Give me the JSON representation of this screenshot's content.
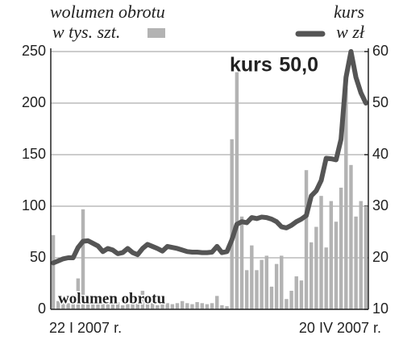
{
  "chart_data": {
    "type": "bar",
    "categories": [
      "22 I 2007 r.",
      null,
      null,
      null,
      null,
      null,
      null,
      null,
      null,
      null,
      null,
      null,
      null,
      null,
      null,
      null,
      null,
      null,
      null,
      null,
      null,
      null,
      null,
      null,
      null,
      null,
      null,
      null,
      null,
      null,
      null,
      null,
      null,
      null,
      null,
      null,
      null,
      null,
      null,
      null,
      null,
      null,
      null,
      null,
      null,
      null,
      null,
      null,
      null,
      null,
      null,
      null,
      null,
      null,
      null,
      null,
      null,
      null,
      null,
      null,
      null,
      null,
      null,
      "20 IV 2007 r."
    ],
    "series": [
      {
        "name": "wolumen obrotu",
        "unit": "w tys. szt.",
        "type": "bar",
        "color": "#b3b3b3",
        "values": [
          72,
          8,
          7,
          6,
          5,
          30,
          97,
          8,
          6,
          5,
          8,
          6,
          5,
          7,
          4,
          5,
          5,
          10,
          18,
          8,
          6,
          4,
          7,
          6,
          5,
          6,
          8,
          6,
          5,
          7,
          6,
          5,
          6,
          13,
          4,
          3,
          165,
          230,
          90,
          38,
          62,
          38,
          48,
          52,
          22,
          44,
          52,
          10,
          18,
          32,
          28,
          135,
          65,
          80,
          110,
          60,
          105,
          85,
          118,
          215,
          140,
          90,
          105,
          100
        ]
      },
      {
        "name": "kurs",
        "unit": "w zł",
        "type": "line",
        "axis": "y2",
        "color": "#555555",
        "values": [
          19,
          19.4,
          19.8,
          20,
          20,
          22,
          23.2,
          23.3,
          22.8,
          22.3,
          21.2,
          21.8,
          21.5,
          20.8,
          21,
          21.8,
          21,
          20.6,
          21.8,
          22.6,
          22.2,
          21.8,
          21.3,
          22.2,
          22,
          21.8,
          21.5,
          21.2,
          21.1,
          21.1,
          21,
          21,
          21.1,
          22.2,
          21,
          21.2,
          23.5,
          26.5,
          27,
          26.8,
          27.8,
          27.6,
          27.9,
          27.8,
          27.5,
          27,
          26,
          25.8,
          26.3,
          27,
          27.5,
          28.2,
          32,
          33,
          35,
          39.3,
          39.2,
          39,
          43,
          55,
          60,
          55,
          52,
          50
        ],
        "value_labels": [
          null,
          null,
          null,
          null,
          null,
          null,
          null,
          null,
          null,
          null,
          null,
          null,
          null,
          null,
          null,
          null,
          null,
          null,
          null,
          null,
          null,
          null,
          null,
          null,
          null,
          null,
          null,
          null,
          null,
          null,
          null,
          null,
          null,
          null,
          null,
          null,
          null,
          null,
          null,
          null,
          null,
          null,
          null,
          null,
          null,
          null,
          null,
          null,
          null,
          null,
          null,
          null,
          null,
          null,
          null,
          null,
          null,
          null,
          null,
          null,
          null,
          null,
          null,
          "50,0"
        ],
        "label_prefix": "kurs"
      }
    ],
    "annotation": "wolumen obrotu",
    "ylim": [
      0,
      250
    ],
    "yticks": [
      0,
      50,
      100,
      150,
      200,
      250
    ],
    "y2lim": [
      10,
      60
    ],
    "y2ticks": [
      10,
      20,
      30,
      40,
      50,
      60
    ],
    "grid": true
  }
}
